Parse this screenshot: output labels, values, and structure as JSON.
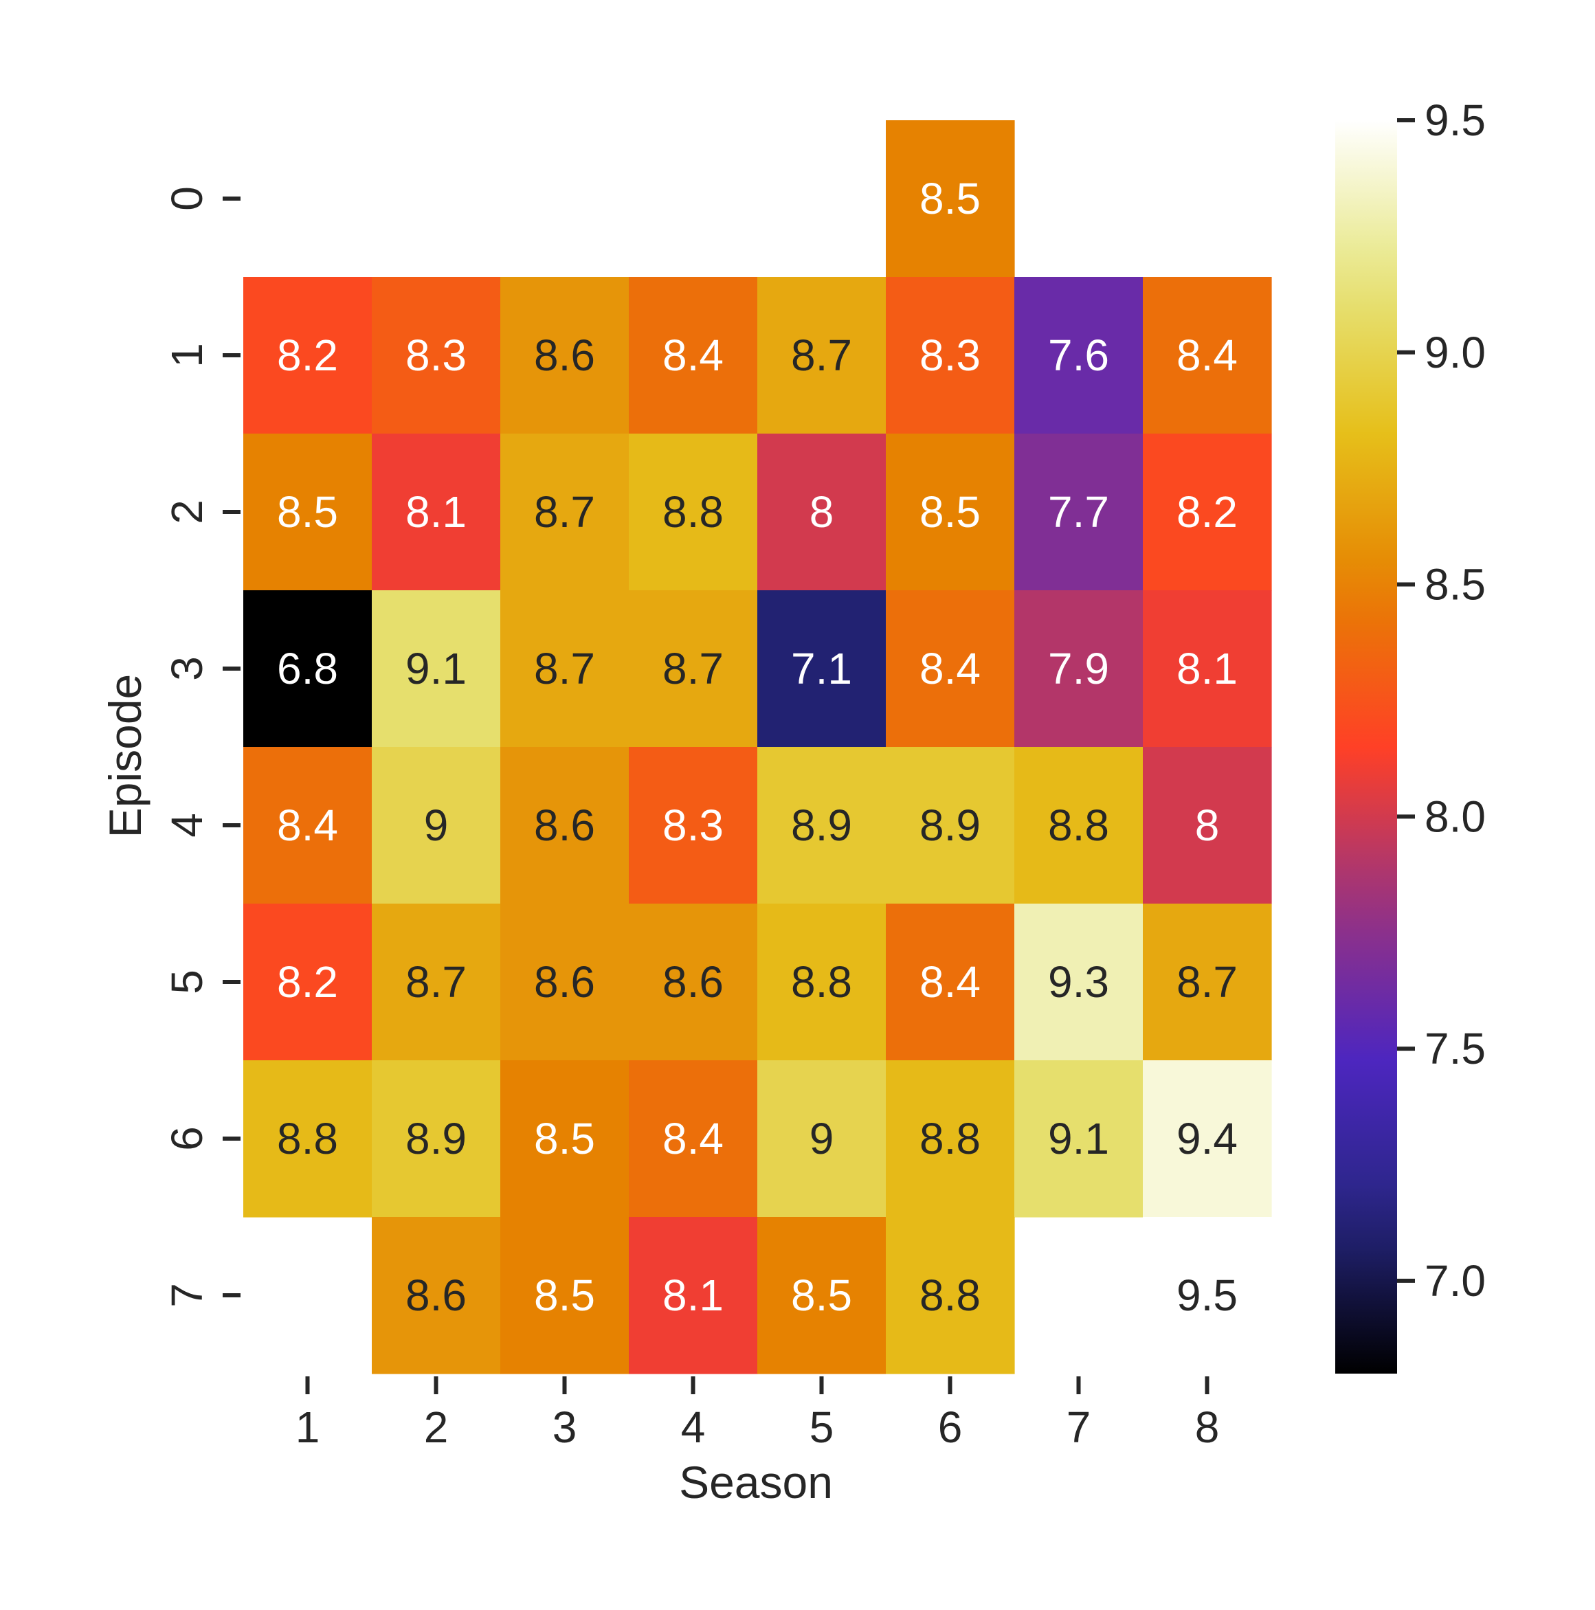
{
  "chart_data": {
    "type": "heatmap",
    "xlabel": "Season",
    "ylabel": "Episode",
    "x_categories": [
      "1",
      "2",
      "3",
      "4",
      "5",
      "6",
      "7",
      "8"
    ],
    "y_categories": [
      "0",
      "1",
      "2",
      "3",
      "4",
      "5",
      "6",
      "7"
    ],
    "values": [
      [
        null,
        null,
        null,
        null,
        null,
        8.5,
        null,
        null
      ],
      [
        8.2,
        8.3,
        8.6,
        8.4,
        8.7,
        8.3,
        7.6,
        8.4
      ],
      [
        8.5,
        8.1,
        8.7,
        8.8,
        8.0,
        8.5,
        7.7,
        8.2
      ],
      [
        6.8,
        9.1,
        8.7,
        8.7,
        7.1,
        8.4,
        7.9,
        8.1
      ],
      [
        8.4,
        9.0,
        8.6,
        8.3,
        8.9,
        8.9,
        8.8,
        8.0
      ],
      [
        8.2,
        8.7,
        8.6,
        8.6,
        8.8,
        8.4,
        9.3,
        8.7
      ],
      [
        8.8,
        8.9,
        8.5,
        8.4,
        9.0,
        8.8,
        9.1,
        9.4
      ],
      [
        null,
        8.6,
        8.5,
        8.1,
        8.5,
        8.8,
        null,
        9.5
      ]
    ],
    "annotations": [
      [
        "",
        "",
        "",
        "",
        "",
        "8.5",
        "",
        ""
      ],
      [
        "8.2",
        "8.3",
        "8.6",
        "8.4",
        "8.7",
        "8.3",
        "7.6",
        "8.4"
      ],
      [
        "8.5",
        "8.1",
        "8.7",
        "8.8",
        "8",
        "8.5",
        "7.7",
        "8.2"
      ],
      [
        "6.8",
        "9.1",
        "8.7",
        "8.7",
        "7.1",
        "8.4",
        "7.9",
        "8.1"
      ],
      [
        "8.4",
        "9",
        "8.6",
        "8.3",
        "8.9",
        "8.9",
        "8.8",
        "8"
      ],
      [
        "8.2",
        "8.7",
        "8.6",
        "8.6",
        "8.8",
        "8.4",
        "9.3",
        "8.7"
      ],
      [
        "8.8",
        "8.9",
        "8.5",
        "8.4",
        "9",
        "8.8",
        "9.1",
        "9.4"
      ],
      [
        "",
        "8.6",
        "8.5",
        "8.1",
        "8.5",
        "8.8",
        "",
        "9.5"
      ]
    ],
    "colormap": "CMRmap",
    "color_range": [
      6.8,
      9.5
    ],
    "colorbar_ticks": [
      "7.0",
      "7.5",
      "8.0",
      "8.5",
      "9.0",
      "9.5"
    ],
    "colorbar_tick_values": [
      7.0,
      7.5,
      8.0,
      8.5,
      9.0,
      9.5
    ],
    "legend_placement": "right",
    "grid": false
  }
}
